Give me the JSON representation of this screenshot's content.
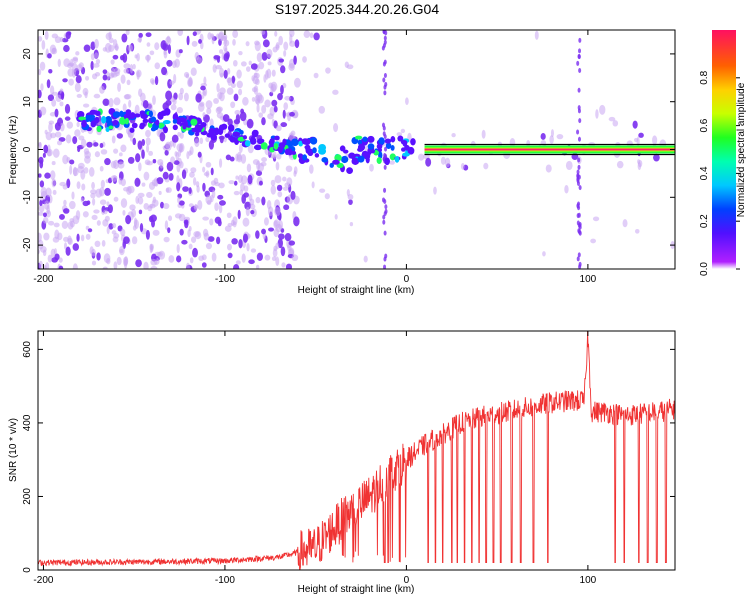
{
  "title": "S197.2025.344.20.26.G04",
  "chart_data": [
    {
      "type": "heatmap",
      "name": "spectrogram",
      "xlabel": "Height of straight line (km)",
      "ylabel": "Frequency (Hz)",
      "xlim": [
        -203,
        148
      ],
      "ylim": [
        -25,
        25
      ],
      "xticks": [
        -200,
        -100,
        0,
        100
      ],
      "yticks": [
        20,
        10,
        0,
        -10,
        -20
      ],
      "tone_frequency_hz": 0,
      "tone_start_km": 10,
      "spike_heights_km": [
        -12,
        95
      ],
      "colorbar": {
        "label": "Normalized spectral amplitude",
        "range": [
          0,
          1
        ],
        "ticks": [
          0.0,
          0.2,
          0.4,
          0.6,
          0.8
        ],
        "colormap": "hsv-reversed"
      },
      "colors": {
        "noise": "#8a4de0",
        "peak": "#ff1e6e",
        "band_edge": "#000000"
      }
    },
    {
      "type": "line",
      "name": "snr",
      "xlabel": "Height of straight line (km)",
      "ylabel": "SNR (10 * v/v)",
      "xlim": [
        -203,
        148
      ],
      "ylim": [
        0,
        650
      ],
      "xticks": [
        -200,
        -100,
        0,
        100
      ],
      "yticks": [
        0,
        200,
        400,
        600
      ],
      "color": "#f03232",
      "trend_x": [
        -203,
        -150,
        -100,
        -70,
        -50,
        -35,
        -20,
        -10,
        0,
        10,
        20,
        30,
        40,
        50,
        60,
        70,
        80,
        90,
        98,
        100,
        102,
        110,
        120,
        130,
        140,
        148
      ],
      "trend_y": [
        20,
        22,
        25,
        35,
        60,
        140,
        200,
        260,
        300,
        340,
        370,
        400,
        415,
        425,
        435,
        445,
        455,
        460,
        460,
        640,
        430,
        430,
        420,
        425,
        430,
        440
      ],
      "dropouts_x": [
        -12,
        -10,
        12,
        16,
        20,
        25,
        28,
        32,
        36,
        40,
        44,
        48,
        52,
        58,
        63,
        70,
        78,
        115,
        120,
        128,
        133,
        138,
        143
      ],
      "dropout_min": 20
    }
  ]
}
